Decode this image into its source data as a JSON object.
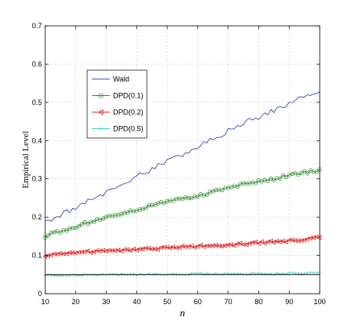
{
  "chart_data": {
    "type": "line",
    "title": "",
    "xlabel": "n",
    "ylabel": "Empirical Level",
    "xlim": [
      10,
      100
    ],
    "ylim": [
      0,
      0.7
    ],
    "x_ticks": [
      "10",
      "20",
      "30",
      "40",
      "50",
      "60",
      "70",
      "80",
      "90",
      "100"
    ],
    "y_ticks": [
      "0",
      "0.1",
      "0.2",
      "0.3",
      "0.4",
      "0.5",
      "0.6",
      "0.7"
    ],
    "grid": true,
    "legend_position": "upper-left",
    "x": [
      10,
      15,
      20,
      25,
      30,
      35,
      40,
      45,
      50,
      55,
      60,
      65,
      70,
      75,
      80,
      85,
      90,
      95,
      100
    ],
    "series": [
      {
        "name": "Wald",
        "color": "#3b4cc0",
        "marker": "none",
        "values": [
          0.19,
          0.205,
          0.225,
          0.245,
          0.265,
          0.283,
          0.305,
          0.325,
          0.345,
          0.365,
          0.385,
          0.405,
          0.425,
          0.445,
          0.462,
          0.48,
          0.498,
          0.515,
          0.525
        ]
      },
      {
        "name": "DPD(0.1)",
        "color": "#2e8b2e",
        "marker": "circle",
        "values": [
          0.15,
          0.163,
          0.175,
          0.188,
          0.198,
          0.209,
          0.22,
          0.232,
          0.242,
          0.248,
          0.257,
          0.265,
          0.275,
          0.285,
          0.293,
          0.3,
          0.31,
          0.317,
          0.322
        ]
      },
      {
        "name": "DPD(0.2)",
        "color": "#e02020",
        "marker": "triangle-left",
        "values": [
          0.1,
          0.106,
          0.108,
          0.11,
          0.112,
          0.114,
          0.116,
          0.118,
          0.12,
          0.122,
          0.124,
          0.126,
          0.128,
          0.13,
          0.133,
          0.135,
          0.138,
          0.142,
          0.147
        ]
      },
      {
        "name": "DPD(0.5)",
        "color": "#40d0c0",
        "marker": "plus",
        "values": [
          0.048,
          0.048,
          0.049,
          0.049,
          0.05,
          0.05,
          0.05,
          0.051,
          0.05,
          0.051,
          0.052,
          0.051,
          0.052,
          0.052,
          0.053,
          0.052,
          0.053,
          0.053,
          0.054
        ]
      }
    ],
    "reference_line": {
      "y": 0.05,
      "color": "#000000"
    }
  }
}
